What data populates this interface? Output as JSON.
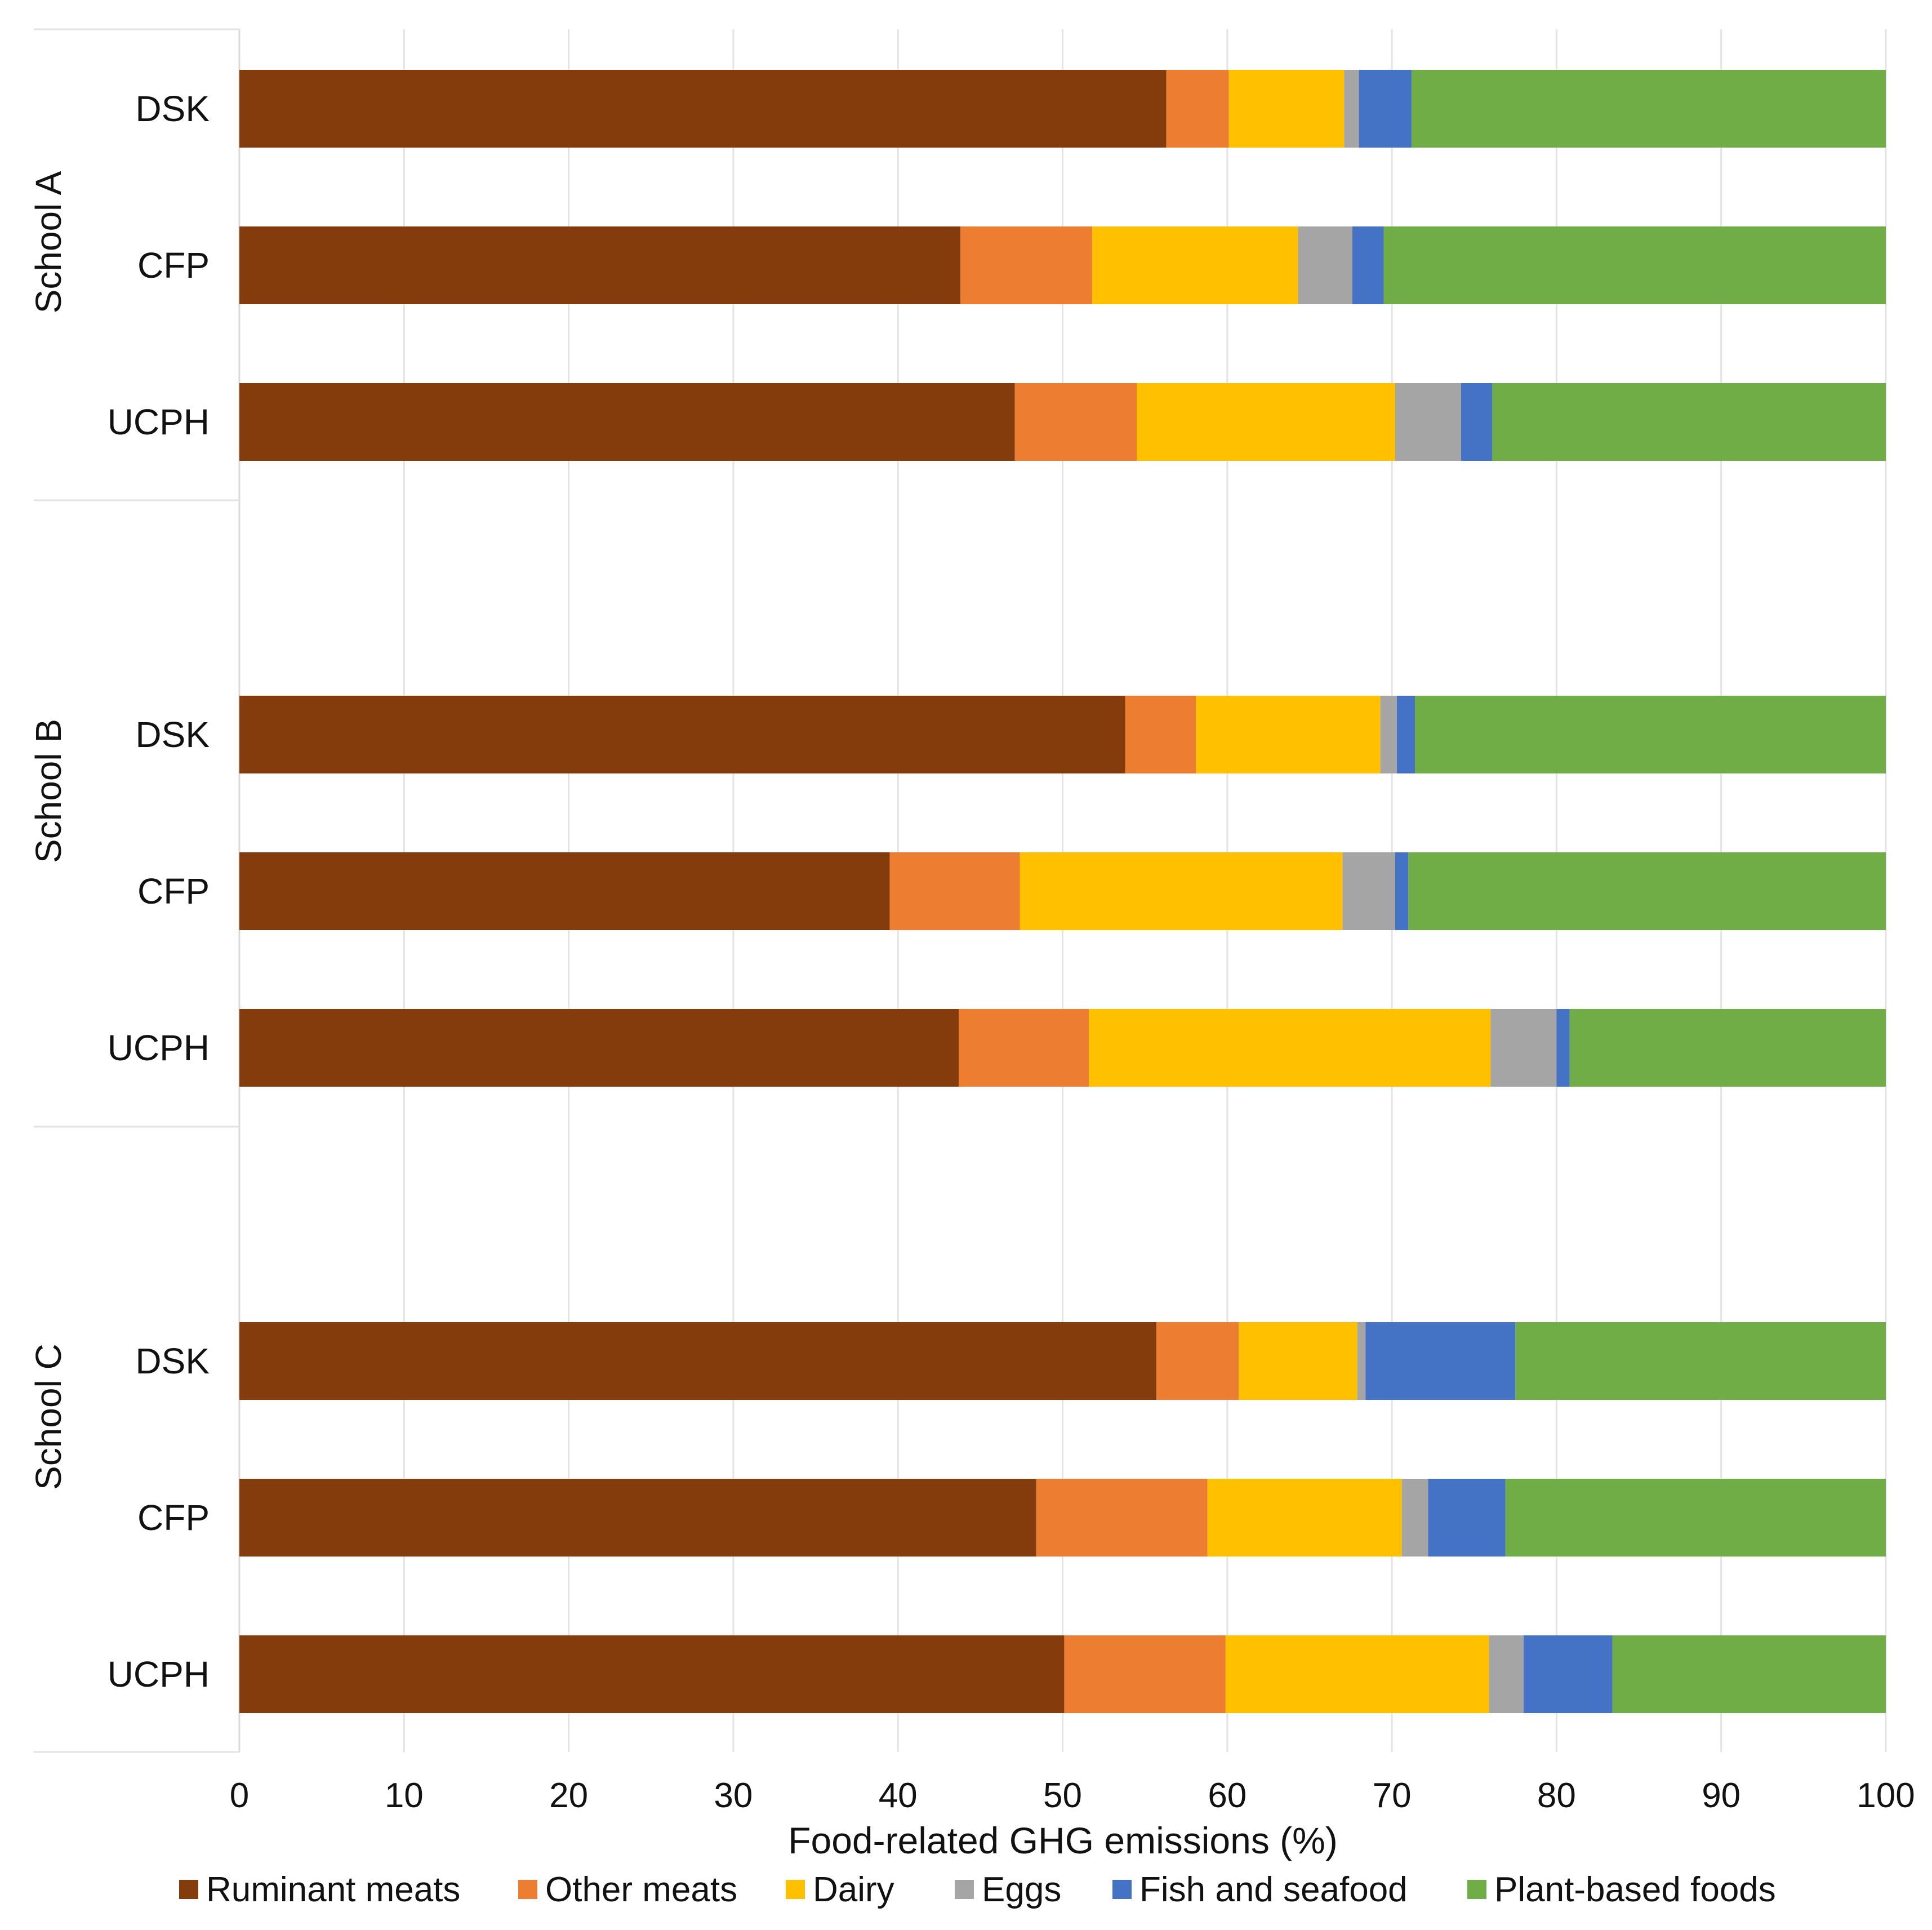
{
  "chart_data": {
    "type": "bar",
    "orientation": "horizontal",
    "stacked": true,
    "title": "",
    "xlabel": "Food-related GHG emissions (%)",
    "ylabel": "",
    "xlim": [
      0,
      100
    ],
    "x_ticks": [
      0,
      10,
      20,
      30,
      40,
      50,
      60,
      70,
      80,
      90,
      100
    ],
    "grid": "vertical",
    "legend_position": "bottom",
    "groups": [
      {
        "label": "School A",
        "bars": [
          {
            "label": "DSK",
            "values": [
              56.3,
              3.8,
              7.0,
              0.9,
              3.2,
              28.8
            ]
          },
          {
            "label": "CFP",
            "values": [
              43.8,
              8.0,
              12.5,
              3.3,
              1.9,
              30.5
            ]
          },
          {
            "label": "UCPH",
            "values": [
              47.1,
              7.4,
              15.7,
              4.0,
              1.9,
              23.9
            ]
          }
        ]
      },
      {
        "label": "School B",
        "bars": [
          {
            "label": "DSK",
            "values": [
              53.8,
              4.3,
              11.2,
              1.0,
              1.1,
              28.6
            ]
          },
          {
            "label": "CFP",
            "values": [
              39.5,
              7.9,
              19.6,
              3.2,
              0.8,
              29.0
            ]
          },
          {
            "label": "UCPH",
            "values": [
              43.7,
              7.9,
              24.4,
              4.0,
              0.8,
              19.2
            ]
          }
        ]
      },
      {
        "label": "School C",
        "bars": [
          {
            "label": "DSK",
            "values": [
              55.7,
              5.0,
              7.2,
              0.5,
              9.1,
              22.5
            ]
          },
          {
            "label": "CFP",
            "values": [
              48.4,
              10.4,
              11.8,
              1.6,
              4.7,
              23.1
            ]
          },
          {
            "label": "UCPH",
            "values": [
              50.1,
              9.8,
              16.0,
              2.1,
              5.4,
              16.6
            ]
          }
        ]
      }
    ],
    "series": [
      {
        "name": "Ruminant meats",
        "color": "#843C0C"
      },
      {
        "name": "Other meats",
        "color": "#ED7D31"
      },
      {
        "name": "Dairy",
        "color": "#FFC000"
      },
      {
        "name": "Eggs",
        "color": "#A5A5A5"
      },
      {
        "name": "Fish and seafood",
        "color": "#4472C4"
      },
      {
        "name": "Plant-based foods",
        "color": "#70AD47"
      }
    ]
  }
}
